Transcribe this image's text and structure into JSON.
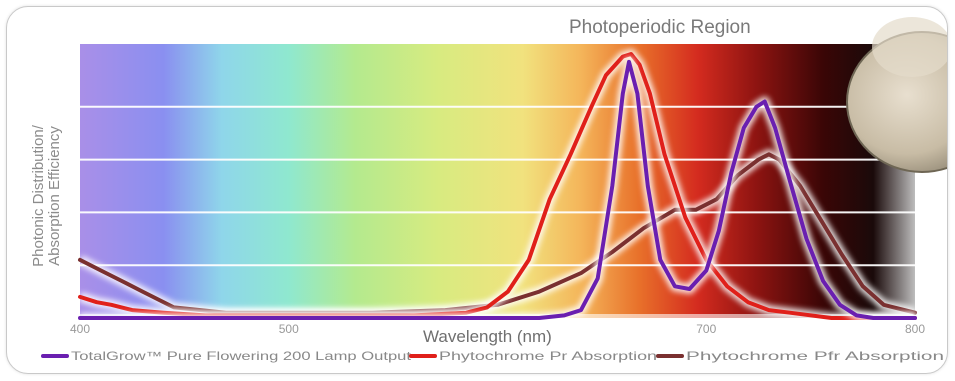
{
  "chart_data": {
    "type": "line",
    "title": "",
    "annotation": "Photoperiodic Region",
    "xlabel": "Wavelength (nm)",
    "ylabel": "Photonic Distribution/ Absorption Efficiency",
    "xlim": [
      400,
      800
    ],
    "ylim": [
      0,
      1
    ],
    "x_ticks": [
      400,
      500,
      700,
      800
    ],
    "grid": true,
    "legend_position": "bottom",
    "series": [
      {
        "name": "TotalGrow™ Pure Flowering 200 Lamp Output",
        "color": "#6a1fb0",
        "x": [
          400,
          500,
          600,
          620,
          632,
          640,
          648,
          655,
          660,
          663,
          667,
          672,
          678,
          685,
          692,
          700,
          706,
          712,
          718,
          724,
          728,
          733,
          740,
          748,
          756,
          764,
          772,
          780,
          800
        ],
        "y": [
          0.0,
          0.0,
          0.0,
          0.0,
          0.01,
          0.03,
          0.15,
          0.5,
          0.85,
          0.97,
          0.85,
          0.5,
          0.22,
          0.12,
          0.11,
          0.18,
          0.33,
          0.55,
          0.72,
          0.8,
          0.82,
          0.72,
          0.52,
          0.3,
          0.14,
          0.05,
          0.01,
          0.0,
          0.0
        ]
      },
      {
        "name": "Phytochrome Pr Absorption",
        "color": "#e0201a",
        "x": [
          400,
          408,
          415,
          425,
          440,
          460,
          500,
          560,
          585,
          595,
          605,
          615,
          625,
          635,
          645,
          652,
          660,
          664,
          668,
          673,
          680,
          690,
          700,
          710,
          720,
          730,
          740,
          760,
          800
        ],
        "y": [
          0.08,
          0.06,
          0.05,
          0.03,
          0.02,
          0.01,
          0.01,
          0.01,
          0.02,
          0.04,
          0.1,
          0.22,
          0.45,
          0.62,
          0.8,
          0.92,
          0.99,
          1.0,
          0.96,
          0.85,
          0.62,
          0.38,
          0.22,
          0.12,
          0.06,
          0.03,
          0.02,
          0.0,
          0.0
        ]
      },
      {
        "name": "Phytochrome Pfr Absorption",
        "color": "#7a3030",
        "x": [
          400,
          410,
          420,
          430,
          445,
          470,
          500,
          540,
          575,
          600,
          620,
          640,
          655,
          670,
          685,
          695,
          705,
          715,
          725,
          730,
          735,
          745,
          755,
          765,
          775,
          785,
          800
        ],
        "y": [
          0.22,
          0.18,
          0.14,
          0.1,
          0.04,
          0.02,
          0.02,
          0.02,
          0.03,
          0.05,
          0.1,
          0.17,
          0.25,
          0.34,
          0.41,
          0.41,
          0.45,
          0.54,
          0.6,
          0.62,
          0.6,
          0.5,
          0.37,
          0.24,
          0.12,
          0.05,
          0.02
        ]
      }
    ]
  }
}
